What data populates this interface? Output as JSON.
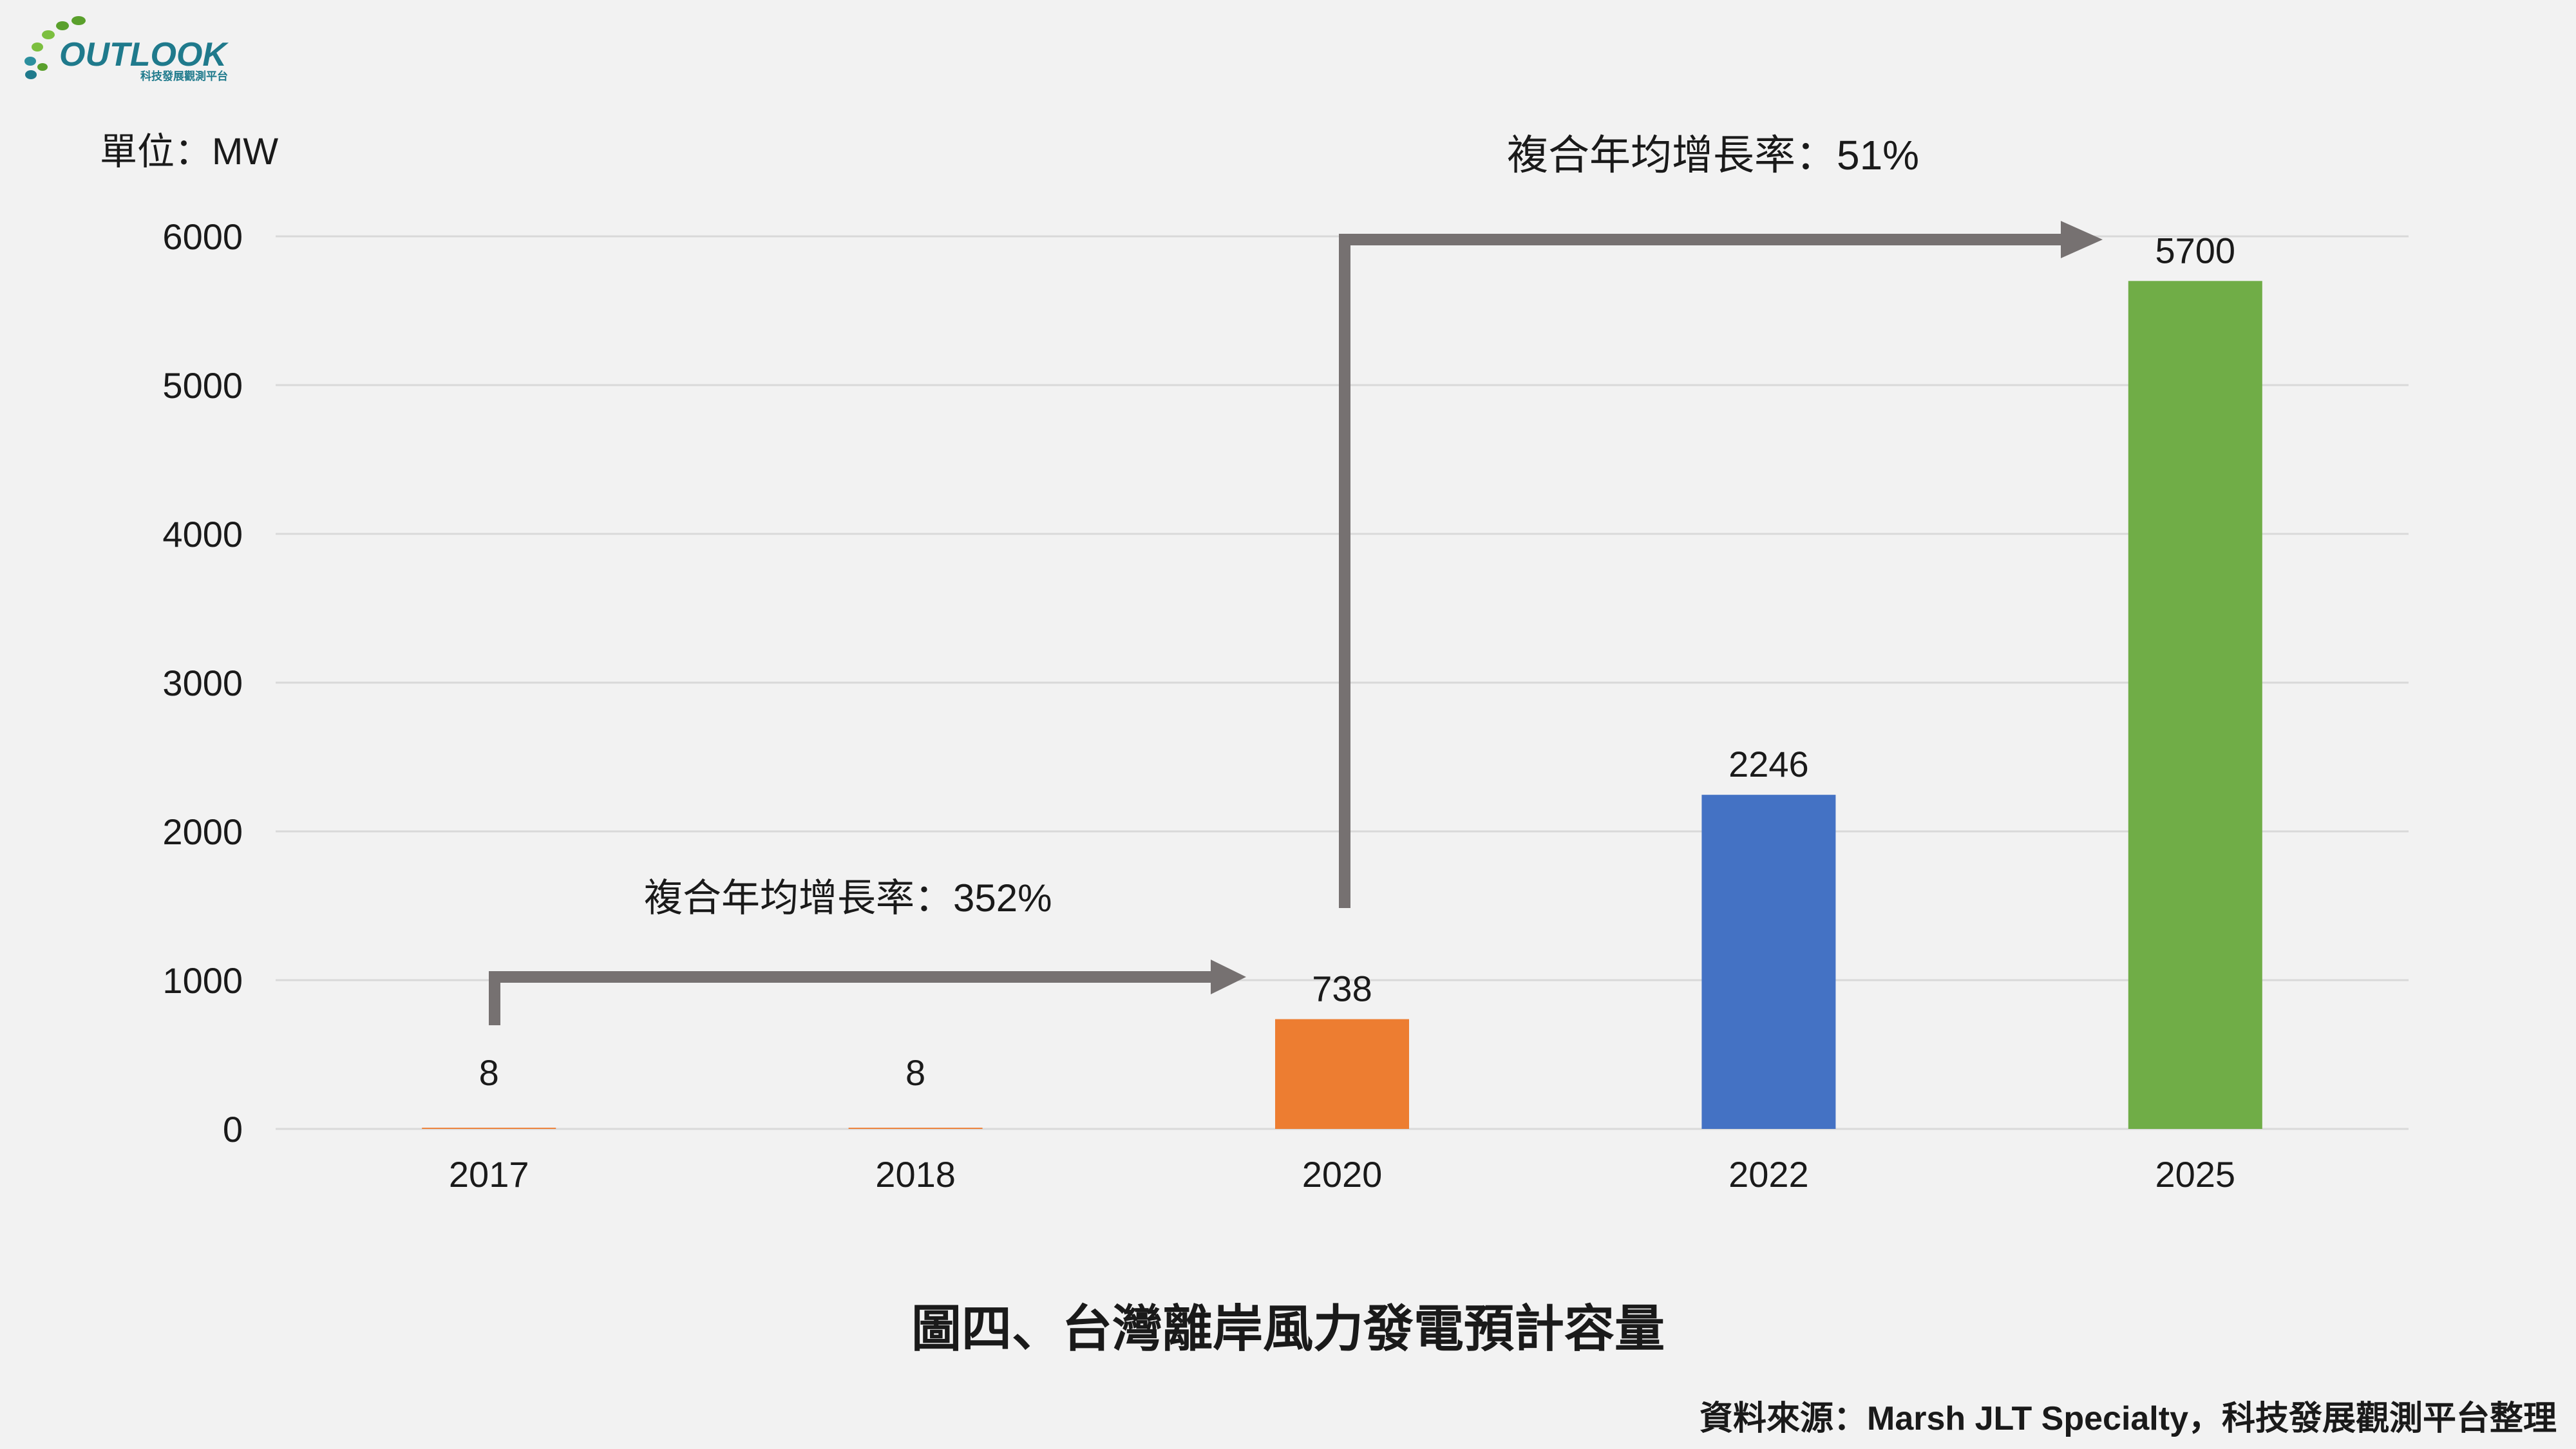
{
  "logo": {
    "wordmark": "OUTLOOK",
    "tagline": "科技發展觀測平台"
  },
  "unit_label": "單位：MW",
  "annotations": {
    "cagr_short": "複合年均增長率：352%",
    "cagr_long": "複合年均增長率：51%"
  },
  "caption": "圖四、台灣離岸風力發電預計容量",
  "source": "資料來源：Marsh JLT Specialty，科技發展觀測平台整理",
  "colors": {
    "background": "#f2f2f2",
    "gridline": "#d9d9d9",
    "arrow": "#767171",
    "bar_2020": "#ed7d31",
    "bar_2022": "#4472c4",
    "bar_2025": "#70ad47",
    "logo_green": "#5aa02c",
    "logo_teal": "#1f7a8c"
  },
  "chart_data": {
    "type": "bar",
    "categories": [
      "2017",
      "2018",
      "2020",
      "2022",
      "2025"
    ],
    "values": [
      8,
      8,
      738,
      2246,
      5700
    ],
    "data_labels": [
      "8",
      "8",
      "738",
      "2246",
      "5700"
    ],
    "bar_colors": [
      "#ed7d31",
      "#ed7d31",
      "#ed7d31",
      "#4472c4",
      "#70ad47"
    ],
    "ylim": [
      0,
      6000
    ],
    "yticks": [
      0,
      1000,
      2000,
      3000,
      4000,
      5000,
      6000
    ],
    "ytick_labels": [
      "0",
      "1000",
      "2000",
      "3000",
      "4000",
      "5000",
      "6000"
    ],
    "grid": true,
    "legend": false
  }
}
